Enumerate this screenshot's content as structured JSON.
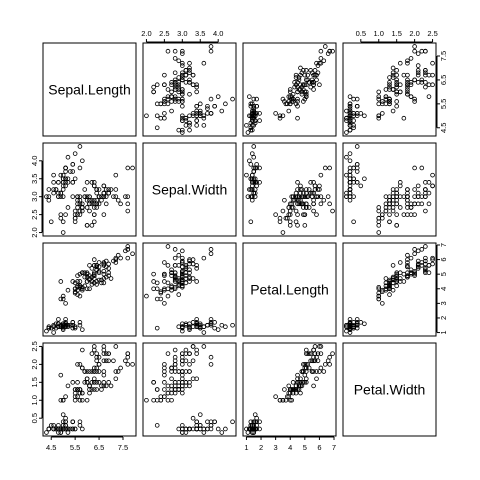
{
  "chart_data": {
    "type": "scatter",
    "kind": "scatterplot-matrix",
    "title": "",
    "grid": false,
    "marker": "open-circle",
    "variables": [
      "Sepal.Length",
      "Sepal.Width",
      "Petal.Length",
      "Petal.Width"
    ],
    "ranges": {
      "Sepal.Length": [
        4.3,
        7.9
      ],
      "Sepal.Width": [
        2.0,
        4.4
      ],
      "Petal.Length": [
        1.0,
        6.9
      ],
      "Petal.Width": [
        0.1,
        2.5
      ]
    },
    "ticks": {
      "Sepal.Length": [
        "4.5",
        "5.5",
        "6.5",
        "7.5"
      ],
      "Sepal.Width": [
        "2.0",
        "2.5",
        "3.0",
        "3.5",
        "4.0"
      ],
      "Petal.Length": [
        "1",
        "2",
        "3",
        "4",
        "5",
        "6",
        "7"
      ],
      "Petal.Width": [
        "0.5",
        "1.0",
        "1.5",
        "2.0",
        "2.5"
      ]
    },
    "axes": {
      "top": [
        "Sepal.Width",
        "Petal.Width"
      ],
      "bottom": [
        "Sepal.Length",
        "Petal.Length"
      ],
      "left": [
        "Sepal.Width",
        "Petal.Width"
      ],
      "right": [
        "Sepal.Length",
        "Petal.Length"
      ]
    },
    "observations": [
      [
        5.1,
        3.5,
        1.4,
        0.2
      ],
      [
        4.9,
        3.0,
        1.4,
        0.2
      ],
      [
        4.7,
        3.2,
        1.3,
        0.2
      ],
      [
        4.6,
        3.1,
        1.5,
        0.2
      ],
      [
        5.0,
        3.6,
        1.4,
        0.2
      ],
      [
        5.4,
        3.9,
        1.7,
        0.4
      ],
      [
        4.6,
        3.4,
        1.4,
        0.3
      ],
      [
        5.0,
        3.4,
        1.5,
        0.2
      ],
      [
        4.4,
        2.9,
        1.4,
        0.2
      ],
      [
        4.9,
        3.1,
        1.5,
        0.1
      ],
      [
        5.4,
        3.7,
        1.5,
        0.2
      ],
      [
        4.8,
        3.4,
        1.6,
        0.2
      ],
      [
        4.8,
        3.0,
        1.4,
        0.1
      ],
      [
        4.3,
        3.0,
        1.1,
        0.1
      ],
      [
        5.8,
        4.0,
        1.2,
        0.2
      ],
      [
        5.7,
        4.4,
        1.5,
        0.4
      ],
      [
        5.4,
        3.9,
        1.3,
        0.4
      ],
      [
        5.1,
        3.5,
        1.4,
        0.3
      ],
      [
        5.7,
        3.8,
        1.7,
        0.3
      ],
      [
        5.1,
        3.8,
        1.5,
        0.3
      ],
      [
        5.4,
        3.4,
        1.7,
        0.2
      ],
      [
        5.1,
        3.7,
        1.5,
        0.4
      ],
      [
        4.6,
        3.6,
        1.0,
        0.2
      ],
      [
        5.1,
        3.3,
        1.7,
        0.5
      ],
      [
        4.8,
        3.4,
        1.9,
        0.2
      ],
      [
        5.0,
        3.0,
        1.6,
        0.2
      ],
      [
        5.0,
        3.4,
        1.6,
        0.4
      ],
      [
        5.2,
        3.5,
        1.5,
        0.2
      ],
      [
        5.2,
        3.4,
        1.4,
        0.2
      ],
      [
        4.7,
        3.2,
        1.6,
        0.2
      ],
      [
        4.8,
        3.1,
        1.6,
        0.2
      ],
      [
        5.4,
        3.4,
        1.5,
        0.4
      ],
      [
        5.2,
        4.1,
        1.5,
        0.1
      ],
      [
        5.5,
        4.2,
        1.4,
        0.2
      ],
      [
        4.9,
        3.1,
        1.5,
        0.2
      ],
      [
        5.0,
        3.2,
        1.2,
        0.2
      ],
      [
        5.5,
        3.5,
        1.3,
        0.2
      ],
      [
        4.9,
        3.6,
        1.4,
        0.1
      ],
      [
        4.4,
        3.0,
        1.3,
        0.2
      ],
      [
        5.1,
        3.4,
        1.5,
        0.2
      ],
      [
        5.0,
        3.5,
        1.3,
        0.3
      ],
      [
        4.5,
        2.3,
        1.3,
        0.3
      ],
      [
        4.4,
        3.2,
        1.3,
        0.2
      ],
      [
        5.0,
        3.5,
        1.6,
        0.6
      ],
      [
        5.1,
        3.8,
        1.9,
        0.4
      ],
      [
        4.8,
        3.0,
        1.4,
        0.3
      ],
      [
        5.1,
        3.8,
        1.6,
        0.2
      ],
      [
        4.6,
        3.2,
        1.4,
        0.2
      ],
      [
        5.3,
        3.7,
        1.5,
        0.2
      ],
      [
        5.0,
        3.3,
        1.4,
        0.2
      ],
      [
        7.0,
        3.2,
        4.7,
        1.4
      ],
      [
        6.4,
        3.2,
        4.5,
        1.5
      ],
      [
        6.9,
        3.1,
        4.9,
        1.5
      ],
      [
        5.5,
        2.3,
        4.0,
        1.3
      ],
      [
        6.5,
        2.8,
        4.6,
        1.5
      ],
      [
        5.7,
        2.8,
        4.5,
        1.3
      ],
      [
        6.3,
        3.3,
        4.7,
        1.6
      ],
      [
        4.9,
        2.4,
        3.3,
        1.0
      ],
      [
        6.6,
        2.9,
        4.6,
        1.3
      ],
      [
        5.2,
        2.7,
        3.9,
        1.4
      ],
      [
        5.0,
        2.0,
        3.5,
        1.0
      ],
      [
        5.9,
        3.0,
        4.2,
        1.5
      ],
      [
        6.0,
        2.2,
        4.0,
        1.0
      ],
      [
        6.1,
        2.9,
        4.7,
        1.4
      ],
      [
        5.6,
        2.9,
        3.6,
        1.3
      ],
      [
        6.7,
        3.1,
        4.4,
        1.4
      ],
      [
        5.6,
        3.0,
        4.5,
        1.5
      ],
      [
        5.8,
        2.7,
        4.1,
        1.0
      ],
      [
        6.2,
        2.2,
        4.5,
        1.5
      ],
      [
        5.6,
        2.5,
        3.9,
        1.1
      ],
      [
        5.9,
        3.2,
        4.8,
        1.8
      ],
      [
        6.1,
        2.8,
        4.0,
        1.3
      ],
      [
        6.3,
        2.5,
        4.9,
        1.5
      ],
      [
        6.1,
        2.8,
        4.7,
        1.2
      ],
      [
        6.4,
        2.9,
        4.3,
        1.3
      ],
      [
        6.6,
        3.0,
        4.4,
        1.4
      ],
      [
        6.8,
        2.8,
        4.8,
        1.4
      ],
      [
        6.7,
        3.0,
        5.0,
        1.7
      ],
      [
        6.0,
        2.9,
        4.5,
        1.5
      ],
      [
        5.7,
        2.6,
        3.5,
        1.0
      ],
      [
        5.5,
        2.4,
        3.8,
        1.1
      ],
      [
        5.5,
        2.4,
        3.7,
        1.0
      ],
      [
        5.8,
        2.7,
        3.9,
        1.2
      ],
      [
        6.0,
        2.7,
        5.1,
        1.6
      ],
      [
        5.4,
        3.0,
        4.5,
        1.5
      ],
      [
        6.0,
        3.4,
        4.5,
        1.6
      ],
      [
        6.7,
        3.1,
        4.7,
        1.5
      ],
      [
        6.3,
        2.3,
        4.4,
        1.3
      ],
      [
        5.6,
        3.0,
        4.1,
        1.3
      ],
      [
        5.5,
        2.5,
        4.0,
        1.3
      ],
      [
        5.5,
        2.6,
        4.4,
        1.2
      ],
      [
        6.1,
        3.0,
        4.6,
        1.4
      ],
      [
        5.8,
        2.6,
        4.0,
        1.2
      ],
      [
        5.0,
        2.3,
        3.3,
        1.0
      ],
      [
        5.6,
        2.7,
        4.2,
        1.3
      ],
      [
        5.7,
        3.0,
        4.2,
        1.2
      ],
      [
        5.7,
        2.9,
        4.2,
        1.3
      ],
      [
        6.2,
        2.9,
        4.3,
        1.3
      ],
      [
        5.1,
        2.5,
        3.0,
        1.1
      ],
      [
        5.7,
        2.8,
        4.1,
        1.3
      ],
      [
        6.3,
        3.3,
        6.0,
        2.5
      ],
      [
        5.8,
        2.7,
        5.1,
        1.9
      ],
      [
        7.1,
        3.0,
        5.9,
        2.1
      ],
      [
        6.3,
        2.9,
        5.6,
        1.8
      ],
      [
        6.5,
        3.0,
        5.8,
        2.2
      ],
      [
        7.6,
        3.0,
        6.6,
        2.1
      ],
      [
        4.9,
        2.5,
        4.5,
        1.7
      ],
      [
        7.3,
        2.9,
        6.3,
        1.8
      ],
      [
        6.7,
        2.5,
        5.8,
        1.8
      ],
      [
        7.2,
        3.6,
        6.1,
        2.5
      ],
      [
        6.5,
        3.2,
        5.1,
        2.0
      ],
      [
        6.4,
        2.7,
        5.3,
        1.9
      ],
      [
        6.8,
        3.0,
        5.5,
        2.1
      ],
      [
        5.7,
        2.5,
        5.0,
        2.0
      ],
      [
        5.8,
        2.8,
        5.1,
        2.4
      ],
      [
        6.4,
        3.2,
        5.3,
        2.3
      ],
      [
        6.5,
        3.0,
        5.5,
        1.8
      ],
      [
        7.7,
        3.8,
        6.7,
        2.2
      ],
      [
        7.7,
        2.6,
        6.9,
        2.3
      ],
      [
        6.0,
        2.2,
        5.0,
        1.5
      ],
      [
        6.9,
        3.2,
        5.7,
        2.3
      ],
      [
        5.6,
        2.8,
        4.9,
        2.0
      ],
      [
        7.7,
        2.8,
        6.7,
        2.0
      ],
      [
        6.3,
        2.7,
        4.9,
        1.8
      ],
      [
        6.7,
        3.3,
        5.7,
        2.1
      ],
      [
        7.2,
        3.2,
        6.0,
        1.8
      ],
      [
        6.2,
        2.8,
        4.8,
        1.8
      ],
      [
        6.1,
        3.0,
        4.9,
        1.8
      ],
      [
        6.4,
        2.8,
        5.6,
        2.1
      ],
      [
        7.2,
        3.0,
        5.8,
        1.6
      ],
      [
        7.4,
        2.8,
        6.1,
        1.9
      ],
      [
        7.9,
        3.8,
        6.4,
        2.0
      ],
      [
        6.4,
        2.8,
        5.6,
        2.2
      ],
      [
        6.3,
        2.8,
        5.1,
        1.5
      ],
      [
        6.1,
        2.6,
        5.6,
        1.4
      ],
      [
        7.7,
        3.0,
        6.1,
        2.3
      ],
      [
        6.3,
        3.4,
        5.6,
        2.4
      ],
      [
        6.4,
        3.1,
        5.5,
        1.8
      ],
      [
        6.0,
        3.0,
        4.8,
        1.8
      ],
      [
        6.9,
        3.1,
        5.4,
        2.1
      ],
      [
        6.7,
        3.1,
        5.6,
        2.4
      ],
      [
        6.9,
        3.1,
        5.1,
        2.3
      ],
      [
        5.8,
        2.7,
        5.1,
        1.9
      ],
      [
        6.8,
        3.2,
        5.9,
        2.3
      ],
      [
        6.7,
        3.3,
        5.7,
        2.5
      ],
      [
        6.7,
        3.0,
        5.2,
        2.3
      ],
      [
        6.3,
        2.5,
        5.0,
        1.9
      ],
      [
        6.5,
        3.0,
        5.2,
        2.0
      ],
      [
        6.2,
        3.4,
        5.4,
        2.3
      ],
      [
        5.9,
        3.0,
        5.1,
        1.8
      ]
    ]
  }
}
